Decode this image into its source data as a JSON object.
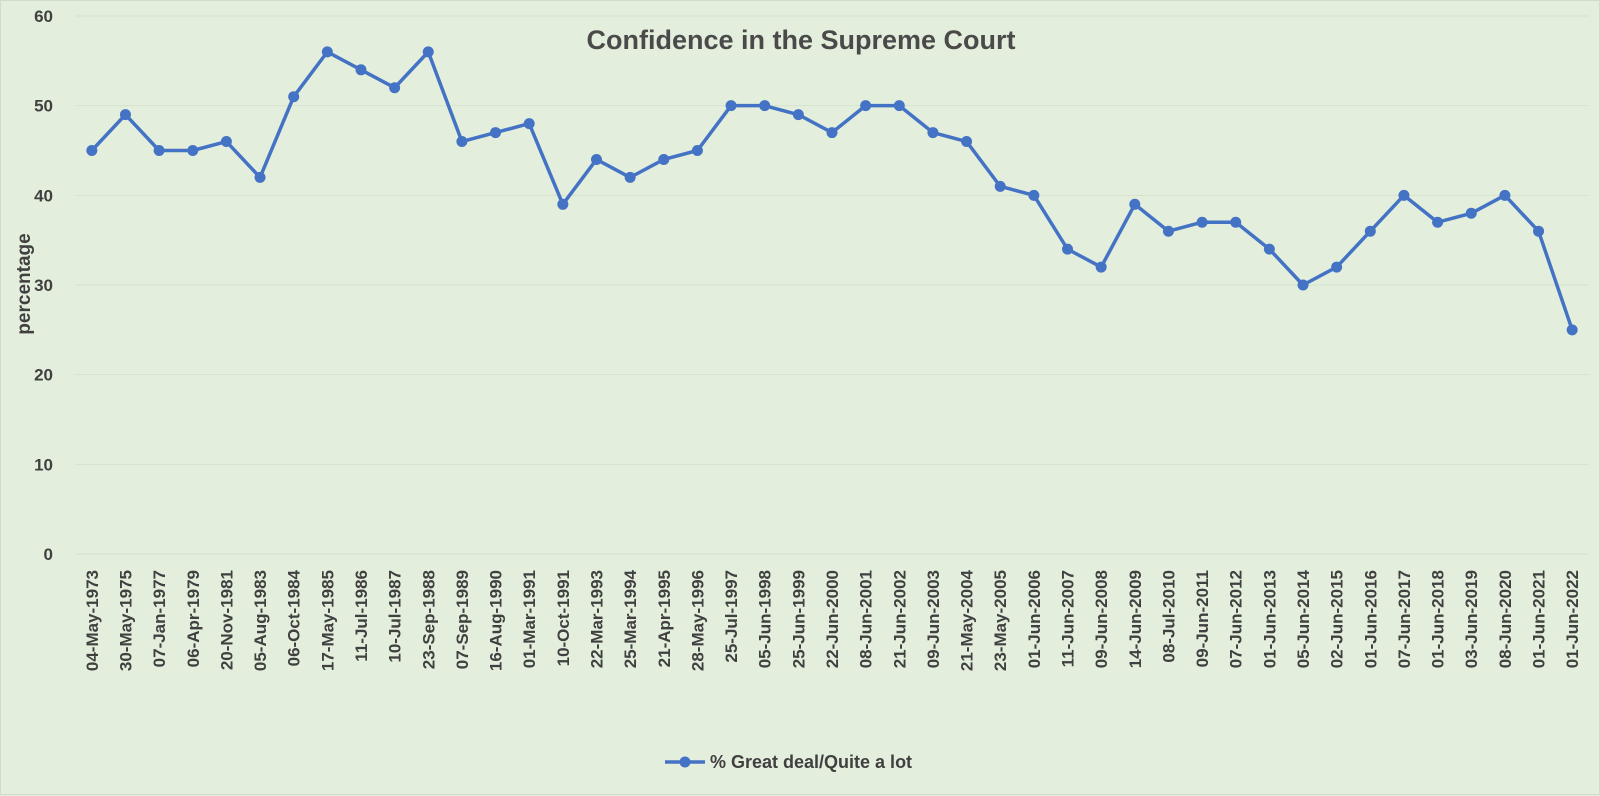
{
  "chart_data": {
    "type": "line",
    "title": "Confidence in the Supreme Court",
    "xlabel": "",
    "ylabel": "percentage",
    "ylim": [
      0,
      60
    ],
    "yticks": [
      0,
      10,
      20,
      30,
      40,
      50,
      60
    ],
    "grid": true,
    "legend_position": "bottom",
    "colors": {
      "series": "#4472c4",
      "grid": "#d6e2d0",
      "text": "#404040",
      "background": "#e3efdc"
    },
    "categories": [
      "04-May-1973",
      "30-May-1975",
      "07-Jan-1977",
      "06-Apr-1979",
      "20-Nov-1981",
      "05-Aug-1983",
      "06-Oct-1984",
      "17-May-1985",
      "11-Jul-1986",
      "10-Jul-1987",
      "23-Sep-1988",
      "07-Sep-1989",
      "16-Aug-1990",
      "01-Mar-1991",
      "10-Oct-1991",
      "22-Mar-1993",
      "25-Mar-1994",
      "21-Apr-1995",
      "28-May-1996",
      "25-Jul-1997",
      "05-Jun-1998",
      "25-Jun-1999",
      "22-Jun-2000",
      "08-Jun-2001",
      "21-Jun-2002",
      "09-Jun-2003",
      "21-May-2004",
      "23-May-2005",
      "01-Jun-2006",
      "11-Jun-2007",
      "09-Jun-2008",
      "14-Jun-2009",
      "08-Jul-2010",
      "09-Jun-2011",
      "07-Jun-2012",
      "01-Jun-2013",
      "05-Jun-2014",
      "02-Jun-2015",
      "01-Jun-2016",
      "07-Jun-2017",
      "01-Jun-2018",
      "03-Jun-2019",
      "08-Jun-2020",
      "01-Jun-2021",
      "01-Jun-2022"
    ],
    "series": [
      {
        "name": "% Great deal/Quite a lot",
        "values": [
          45,
          49,
          45,
          45,
          46,
          42,
          51,
          56,
          54,
          52,
          56,
          46,
          47,
          48,
          39,
          44,
          42,
          44,
          45,
          50,
          50,
          49,
          47,
          50,
          50,
          47,
          46,
          41,
          40,
          34,
          32,
          39,
          36,
          37,
          37,
          34,
          30,
          32,
          36,
          40,
          37,
          38,
          40,
          36,
          25
        ]
      }
    ]
  }
}
